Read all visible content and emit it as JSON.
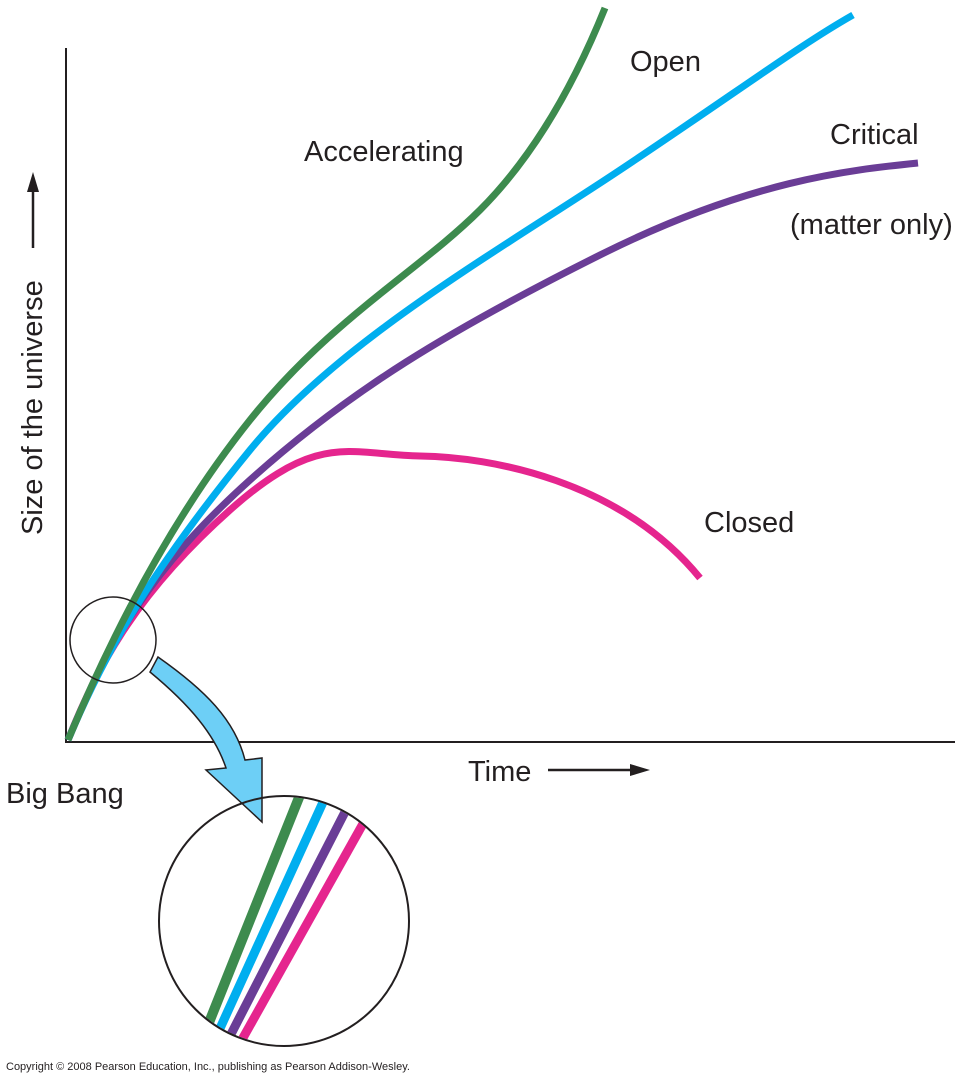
{
  "labels": {
    "accelerating": "Accelerating",
    "open": "Open",
    "critical": "Critical",
    "critical_note": "(matter only)",
    "closed": "Closed"
  },
  "axes": {
    "x_label": "Time",
    "y_label": "Size of the universe",
    "origin_label": "Big Bang"
  },
  "footer": {
    "copyright": "Copyright © 2008 Pearson Education, Inc., publishing as Pearson Addison-Wesley."
  }
}
